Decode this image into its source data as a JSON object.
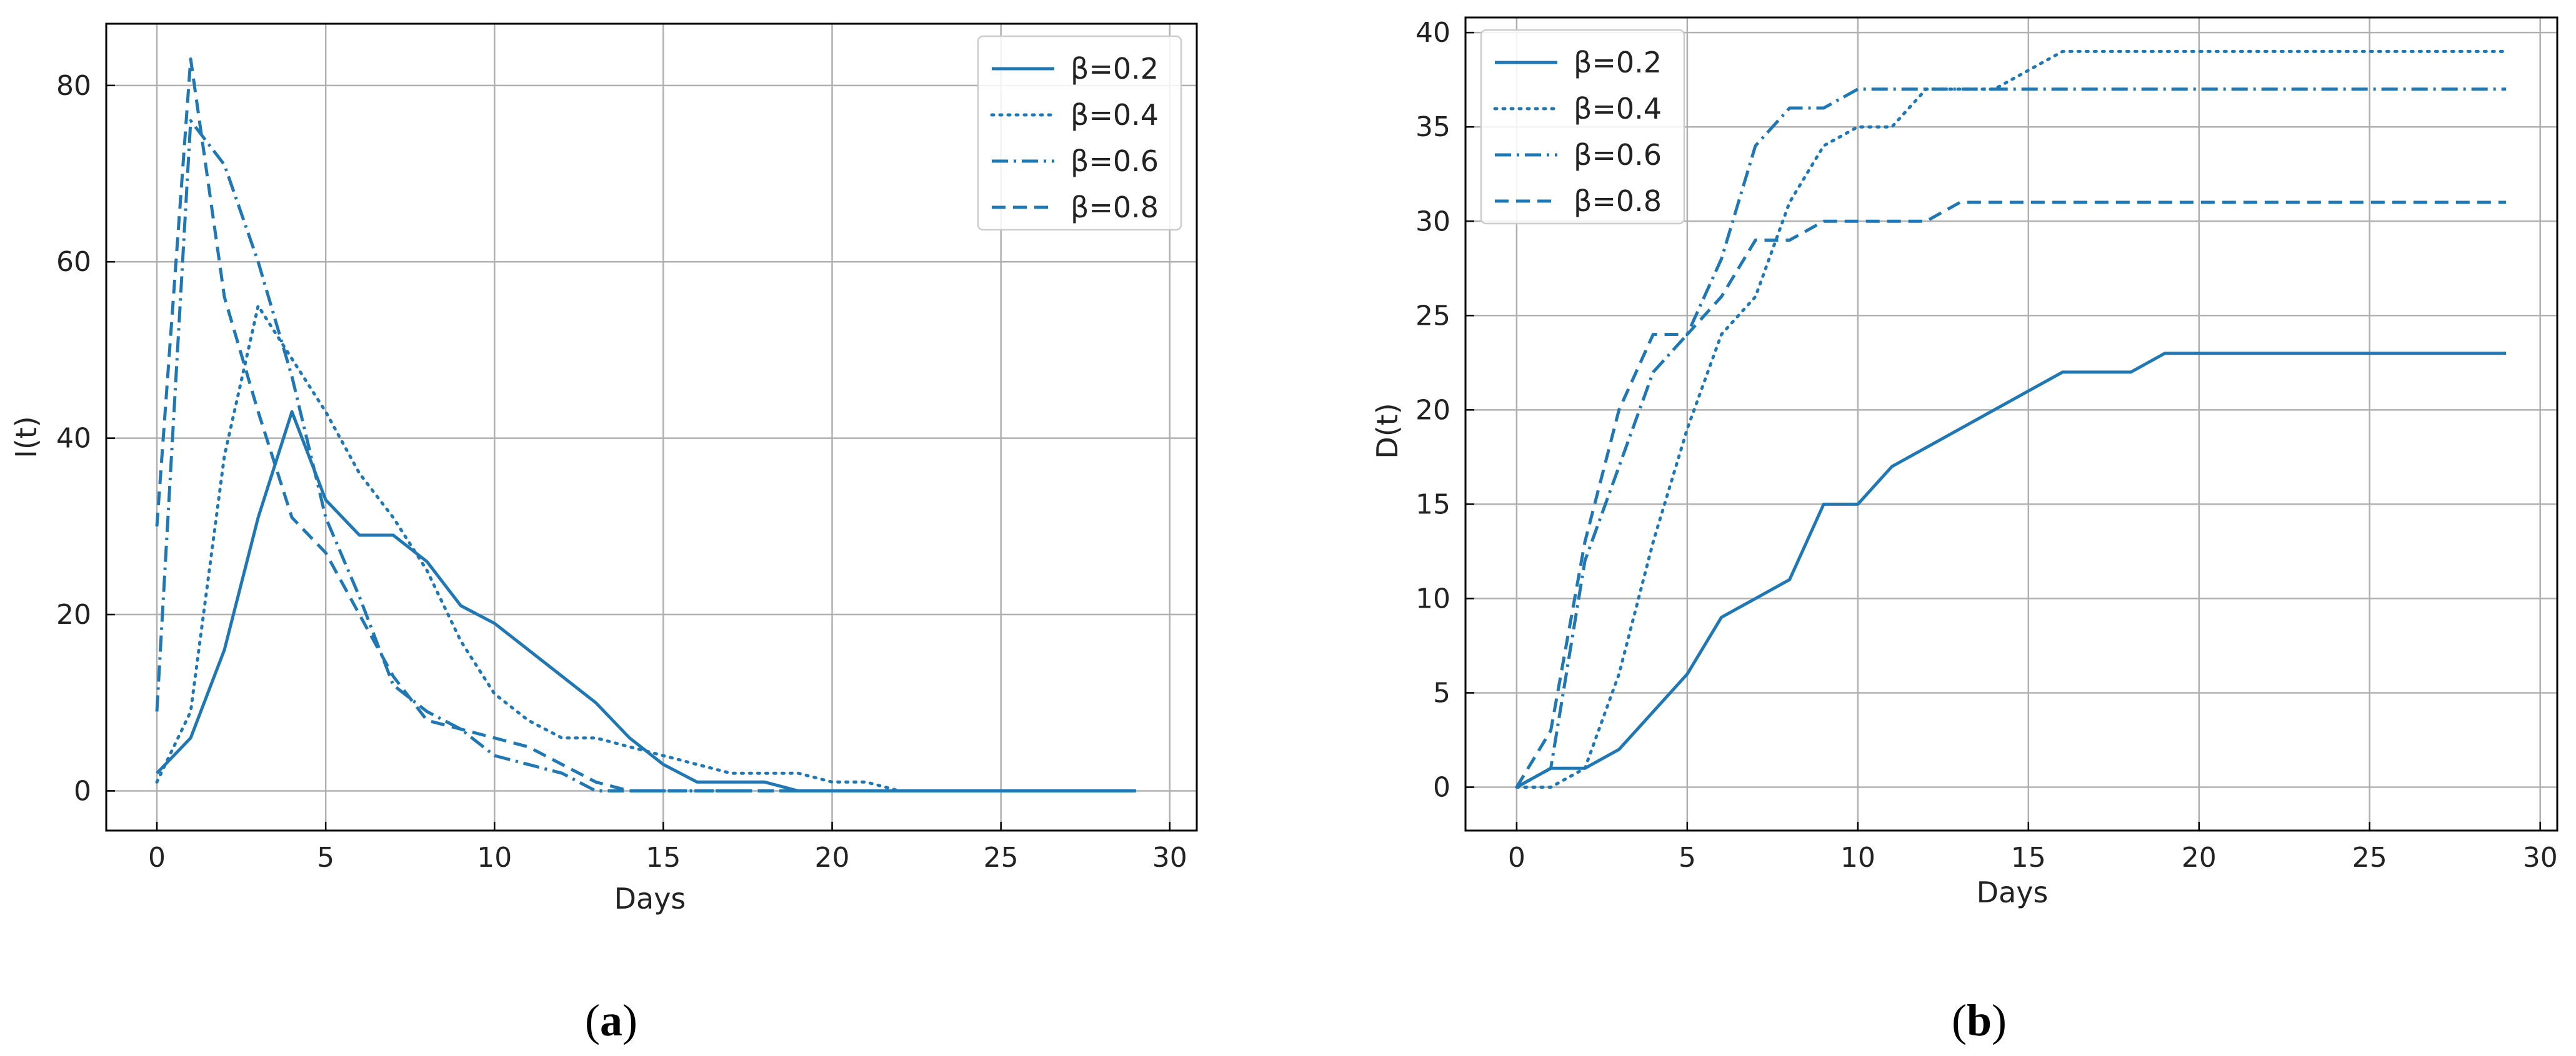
{
  "colors": {
    "series": "#1f77b4",
    "grid": "#b0b0b0",
    "axis": "#000000"
  },
  "chart_data": [
    {
      "type": "line",
      "panel_label": "a",
      "xlabel": "Days",
      "ylabel": "I(t)",
      "xlim": [
        -1.5,
        30.8
      ],
      "ylim": [
        -4.5,
        87
      ],
      "xticks": [
        0,
        5,
        10,
        15,
        20,
        25,
        30
      ],
      "yticks": [
        0,
        20,
        40,
        60,
        80
      ],
      "grid": true,
      "legend_position": "top-right",
      "x": [
        0,
        1,
        2,
        3,
        4,
        5,
        6,
        7,
        8,
        9,
        10,
        11,
        12,
        13,
        14,
        15,
        16,
        17,
        18,
        19,
        20,
        21,
        22,
        23,
        24,
        25,
        26,
        27,
        28,
        29
      ],
      "series": [
        {
          "name": "β=0.2",
          "linestyle": "solid",
          "values": [
            2,
            6,
            16,
            31,
            43,
            33,
            29,
            29,
            26,
            21,
            19,
            16,
            13,
            10,
            6,
            3,
            1,
            1,
            1,
            0,
            0,
            0,
            0,
            0,
            0,
            0,
            0,
            0,
            0,
            0
          ]
        },
        {
          "name": "β=0.4",
          "linestyle": "dotted",
          "values": [
            1,
            9,
            38,
            55,
            49,
            43,
            36,
            31,
            25,
            17,
            11,
            8,
            6,
            6,
            5,
            4,
            3,
            2,
            2,
            2,
            1,
            1,
            0,
            0,
            0,
            0,
            0,
            0,
            0,
            0
          ]
        },
        {
          "name": "β=0.6",
          "linestyle": "dashdot",
          "values": [
            9,
            76,
            71,
            60,
            47,
            31,
            22,
            12,
            9,
            7,
            4,
            3,
            2,
            0,
            0,
            0,
            0,
            0,
            0,
            0,
            0,
            0,
            0,
            0,
            0,
            0,
            0,
            0,
            0,
            0
          ]
        },
        {
          "name": "β=0.8",
          "linestyle": "dashed",
          "values": [
            30,
            83,
            56,
            43,
            31,
            27,
            20,
            13,
            8,
            7,
            6,
            5,
            3,
            1,
            0,
            0,
            0,
            0,
            0,
            0,
            0,
            0,
            0,
            0,
            0,
            0,
            0,
            0,
            0,
            0
          ]
        }
      ]
    },
    {
      "type": "line",
      "panel_label": "b",
      "xlabel": "Days",
      "ylabel": "D(t)",
      "xlim": [
        -1.5,
        30.5
      ],
      "ylim": [
        -2.3,
        40.8
      ],
      "xticks": [
        0,
        5,
        10,
        15,
        20,
        25,
        30
      ],
      "yticks": [
        0,
        5,
        10,
        15,
        20,
        25,
        30,
        35,
        40
      ],
      "grid": true,
      "legend_position": "top-left",
      "x": [
        0,
        1,
        2,
        3,
        4,
        5,
        6,
        7,
        8,
        9,
        10,
        11,
        12,
        13,
        14,
        15,
        16,
        17,
        18,
        19,
        20,
        21,
        22,
        23,
        24,
        25,
        26,
        27,
        28,
        29
      ],
      "series": [
        {
          "name": "β=0.2",
          "linestyle": "solid",
          "values": [
            0,
            1,
            1,
            2,
            4,
            6,
            9,
            10,
            11,
            15,
            15,
            17,
            18,
            19,
            20,
            21,
            22,
            22,
            22,
            23,
            23,
            23,
            23,
            23,
            23,
            23,
            23,
            23,
            23,
            23
          ]
        },
        {
          "name": "β=0.4",
          "linestyle": "dotted",
          "values": [
            0,
            0,
            1,
            6,
            13,
            19,
            24,
            26,
            31,
            34,
            35,
            35,
            37,
            37,
            37,
            38,
            39,
            39,
            39,
            39,
            39,
            39,
            39,
            39,
            39,
            39,
            39,
            39,
            39,
            39
          ]
        },
        {
          "name": "β=0.6",
          "linestyle": "dashdot",
          "values": [
            0,
            1,
            12,
            17,
            22,
            24,
            28,
            34,
            36,
            36,
            37,
            37,
            37,
            37,
            37,
            37,
            37,
            37,
            37,
            37,
            37,
            37,
            37,
            37,
            37,
            37,
            37,
            37,
            37,
            37
          ]
        },
        {
          "name": "β=0.8",
          "linestyle": "dashed",
          "values": [
            0,
            3,
            13,
            20,
            24,
            24,
            26,
            29,
            29,
            30,
            30,
            30,
            30,
            31,
            31,
            31,
            31,
            31,
            31,
            31,
            31,
            31,
            31,
            31,
            31,
            31,
            31,
            31,
            31,
            31
          ]
        }
      ]
    }
  ]
}
